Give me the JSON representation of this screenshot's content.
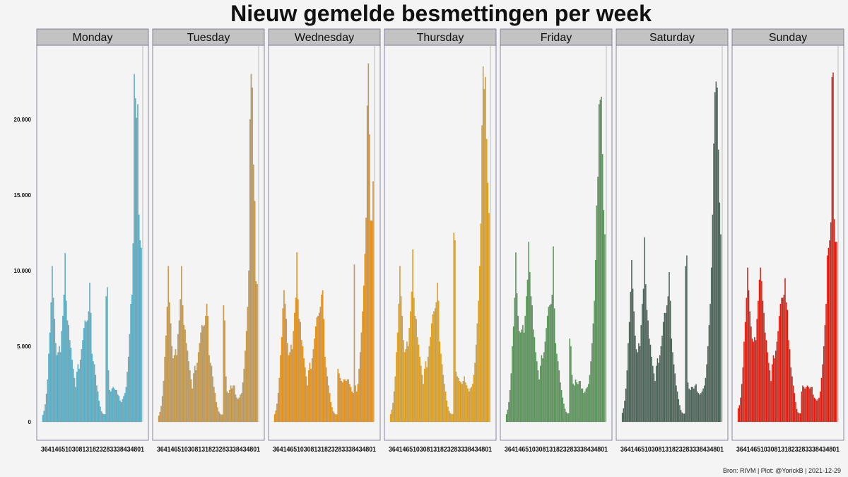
{
  "title": "Nieuw gemelde besmettingen per week",
  "caption": "Bron: RIVM | Plot: @YorickB |  2021-12-29",
  "chart_data": {
    "type": "bar",
    "title": "Nieuw gemelde besmettingen per week",
    "xlabel": "",
    "ylabel": "",
    "ylim": [
      0,
      24500
    ],
    "y_ticks": [
      {
        "value": 0,
        "label": "0"
      },
      {
        "value": 5000,
        "label": "5.000"
      },
      {
        "value": 10000,
        "label": "10.000"
      },
      {
        "value": 15000,
        "label": "15.000"
      },
      {
        "value": 20000,
        "label": "20.000"
      }
    ],
    "grid": false,
    "x_axis_label_text": "364146510308131823283338434801",
    "facets": [
      {
        "name": "Monday",
        "color": "#5bbcd6",
        "values": [
          450,
          720,
          1150,
          1850,
          2800,
          4500,
          5900,
          7900,
          10300,
          8200,
          6800,
          5200,
          4400,
          4600,
          5000,
          4600,
          6000,
          7000,
          8400,
          11150,
          8000,
          6700,
          6400,
          5400,
          4900,
          4100,
          3500,
          2900,
          2300,
          3300,
          3800,
          3500,
          4100,
          4800,
          5400,
          6200,
          6700,
          6600,
          6700,
          7300,
          9200,
          7200,
          4500,
          4000,
          3800,
          3100,
          2400,
          2000,
          1400,
          1000,
          700,
          550,
          500,
          500,
          8300,
          8900,
          3400,
          2100,
          2000,
          2200,
          2300,
          2200,
          2100,
          2100,
          1800,
          1700,
          1400,
          1300,
          1500,
          1700,
          1900,
          2300,
          3300,
          4300,
          5800,
          7800,
          8400,
          11800,
          23000,
          21400,
          20100,
          21000,
          13700,
          12000,
          11500
        ]
      },
      {
        "name": "Tuesday",
        "color": "#d4a34f",
        "values": [
          400,
          650,
          1050,
          1700,
          2700,
          4300,
          5700,
          7600,
          10300,
          7900,
          6500,
          5000,
          4200,
          4400,
          4800,
          4400,
          5800,
          6700,
          8100,
          10300,
          7700,
          6400,
          6100,
          5200,
          4700,
          4000,
          3400,
          2800,
          2200,
          3200,
          3700,
          3400,
          3900,
          4600,
          5200,
          5900,
          6400,
          6300,
          6400,
          7000,
          7800,
          7000,
          4400,
          3900,
          3700,
          3000,
          2300,
          1900,
          1300,
          950,
          680,
          540,
          480,
          480,
          7700,
          6700,
          3000,
          2000,
          1900,
          2100,
          2400,
          2200,
          2400,
          2400,
          1800,
          1600,
          1500,
          1600,
          1800,
          1900,
          2600,
          3500,
          4700,
          6000,
          7600,
          10000,
          20000,
          23000,
          22100,
          17000,
          14600,
          9300,
          9100
        ]
      },
      {
        "name": "Wednesday",
        "color": "#f79c1a",
        "values": [
          500,
          750,
          1200,
          1900,
          2900,
          4400,
          5600,
          7500,
          8700,
          7800,
          6800,
          5200,
          4400,
          4600,
          5100,
          4800,
          6000,
          7200,
          8200,
          11200,
          8100,
          6800,
          6600,
          5400,
          5000,
          4200,
          3600,
          3000,
          2400,
          3400,
          3900,
          3500,
          4200,
          4800,
          5500,
          6300,
          6900,
          7000,
          7200,
          7600,
          8400,
          8700,
          6800,
          4300,
          3600,
          3000,
          2400,
          1900,
          1300,
          960,
          700,
          560,
          490,
          490,
          3500,
          3200,
          2900,
          2700,
          2600,
          2800,
          2800,
          2700,
          2800,
          2800,
          2500,
          2300,
          2000,
          1900,
          10400,
          2400,
          2000,
          2500,
          3500,
          4600,
          5900,
          7300,
          9000,
          11100,
          13500,
          20900,
          23700,
          19000,
          13300,
          13300,
          15900
        ]
      },
      {
        "name": "Thursday",
        "color": "#f2ad1f",
        "values": [
          500,
          800,
          1250,
          2000,
          3000,
          4600,
          5900,
          7800,
          10300,
          8300,
          7000,
          5400,
          4600,
          4800,
          5300,
          5000,
          6200,
          7300,
          8600,
          11400,
          8200,
          7000,
          6800,
          5600,
          5100,
          4300,
          3700,
          3100,
          2500,
          3500,
          4000,
          3600,
          4300,
          5000,
          5600,
          6500,
          7100,
          7300,
          7500,
          7900,
          9200,
          8000,
          5300,
          4500,
          3800,
          3100,
          2500,
          2000,
          1400,
          1000,
          720,
          580,
          510,
          510,
          12500,
          12000,
          3300,
          3000,
          2900,
          2700,
          2600,
          2500,
          2700,
          3000,
          2600,
          2400,
          2200,
          2000,
          2200,
          2300,
          2500,
          3100,
          3900,
          5100,
          6500,
          8000,
          10300,
          13100,
          19600,
          23500,
          22000,
          22800,
          18700,
          15800,
          13800
        ]
      },
      {
        "name": "Friday",
        "color": "#5b9e5b",
        "values": [
          500,
          800,
          1300,
          2100,
          3200,
          5000,
          6300,
          8200,
          11200,
          8500,
          7000,
          6000,
          5900,
          6100,
          6400,
          5900,
          7000,
          8300,
          9400,
          11900,
          9900,
          8300,
          7700,
          6100,
          5600,
          4600,
          4000,
          3400,
          2800,
          3700,
          4400,
          4200,
          4600,
          5300,
          6200,
          7000,
          7600,
          7700,
          7800,
          8400,
          11600,
          7500,
          5200,
          4500,
          4000,
          3400,
          2600,
          2100,
          1600,
          1200,
          860,
          650,
          560,
          560,
          5500,
          5000,
          3100,
          2500,
          2400,
          2800,
          2600,
          2500,
          2700,
          2700,
          2200,
          2200,
          1900,
          2000,
          2200,
          2300,
          2500,
          3100,
          4000,
          5200,
          6500,
          8000,
          10700,
          14300,
          16200,
          21000,
          21300,
          21500,
          17700,
          14000,
          12400
        ]
      },
      {
        "name": "Saturday",
        "color": "#4a6658",
        "values": [
          600,
          900,
          1400,
          2200,
          3400,
          5200,
          6600,
          8600,
          10700,
          8800,
          7300,
          5700,
          4800,
          4600,
          5200,
          5000,
          6400,
          7800,
          8800,
          12200,
          9100,
          7400,
          6700,
          5500,
          5100,
          4300,
          3700,
          3200,
          2700,
          3700,
          4200,
          3900,
          4400,
          5000,
          5700,
          6600,
          7200,
          7200,
          7700,
          8300,
          9900,
          8000,
          5500,
          4600,
          3800,
          3200,
          2400,
          2000,
          1500,
          1100,
          780,
          620,
          540,
          540,
          10300,
          11000,
          2600,
          2200,
          2100,
          2300,
          2300,
          2200,
          2400,
          2500,
          2000,
          1900,
          1800,
          1900,
          2000,
          2200,
          2400,
          2900,
          3800,
          5000,
          6400,
          7800,
          10200,
          13700,
          18400,
          21800,
          22500,
          22100,
          18000,
          14500,
          12400
        ]
      },
      {
        "name": "Sunday",
        "color": "#ee1a0a",
        "values": [
          900,
          1100,
          1600,
          2500,
          3600,
          5300,
          6600,
          8200,
          10200,
          8700,
          7300,
          6300,
          5500,
          5300,
          5600,
          5400,
          6800,
          8000,
          9400,
          10200,
          9300,
          8000,
          7200,
          5900,
          5400,
          4600,
          3900,
          3400,
          2700,
          3800,
          4400,
          4200,
          4700,
          5300,
          6000,
          7000,
          7800,
          8200,
          8200,
          8400,
          9500,
          7900,
          7400,
          5400,
          4800,
          3600,
          3000,
          2400,
          1900,
          1300,
          850,
          630,
          560,
          560,
          2000,
          2400,
          2300,
          2200,
          2300,
          2400,
          2300,
          2200,
          2300,
          2300,
          1800,
          1600,
          1500,
          1400,
          1500,
          1600,
          2000,
          2900,
          3800,
          5000,
          6400,
          7800,
          11000,
          11500,
          12000,
          13200,
          22800,
          23100,
          13400,
          11900,
          11900
        ]
      }
    ]
  }
}
